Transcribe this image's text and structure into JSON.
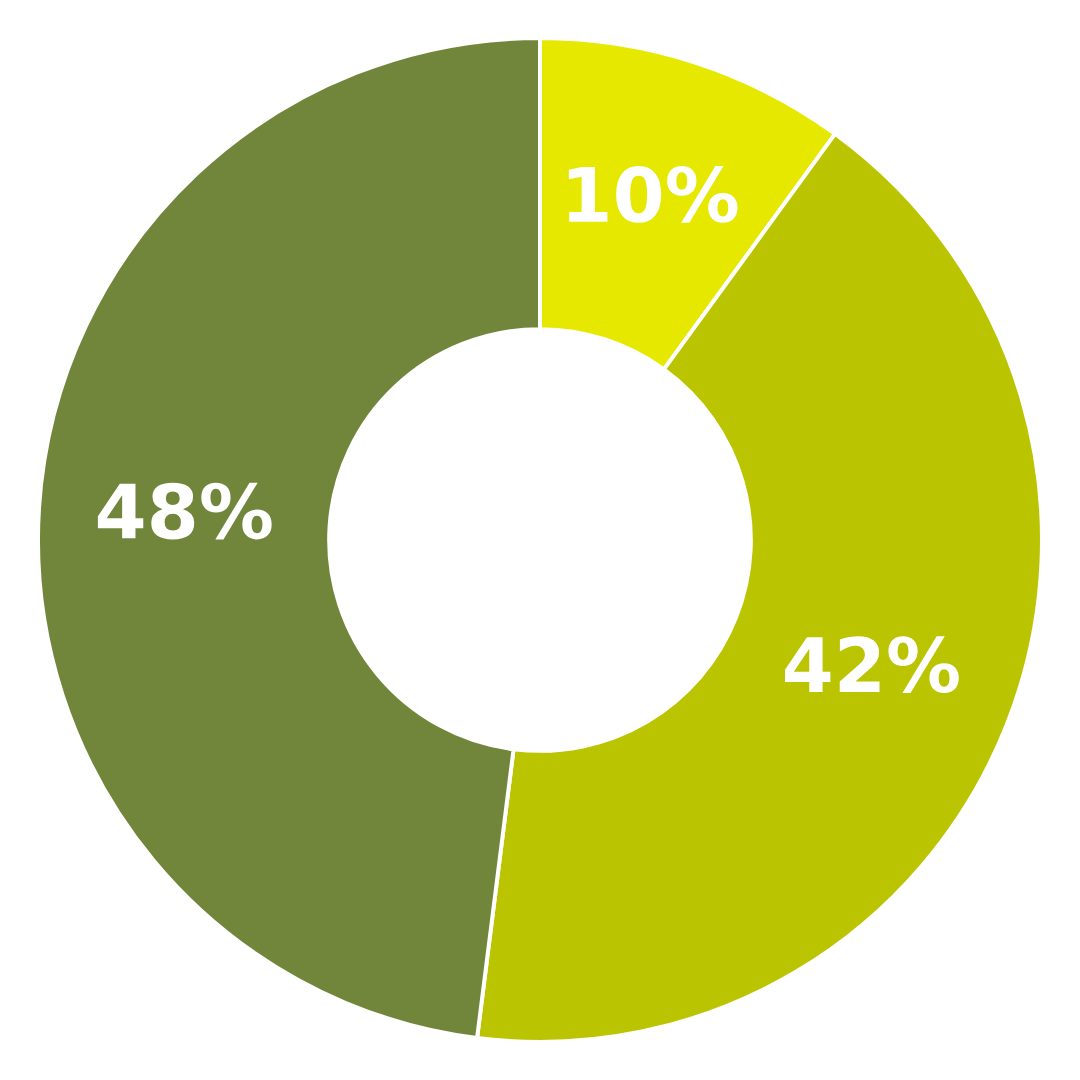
{
  "chart_data": {
    "type": "donut",
    "categories": [
      null,
      null,
      null
    ],
    "values": [
      10,
      42,
      48
    ],
    "colors": [
      "#e6e800",
      "#bbc400",
      "#72863b"
    ],
    "value_labels": [
      "10%",
      "42%",
      "48%"
    ]
  }
}
